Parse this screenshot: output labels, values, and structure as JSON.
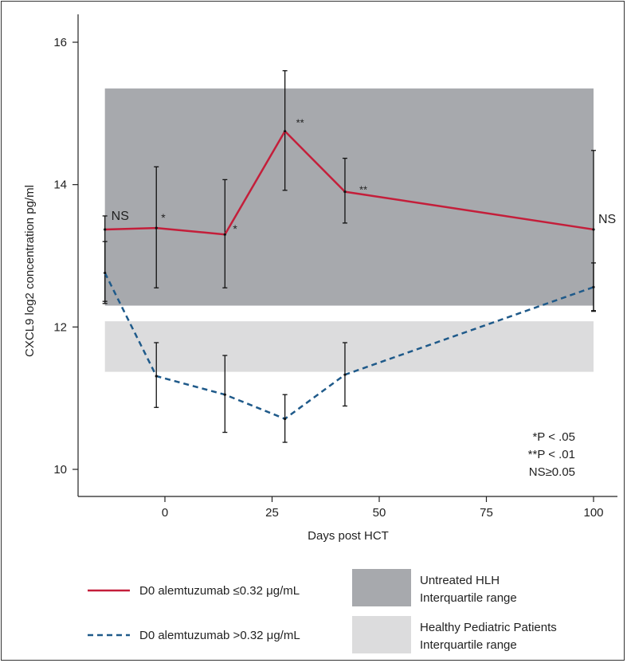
{
  "chart_data": {
    "type": "line",
    "xlabel": "Days post HCT",
    "ylabel": "CXCL9 log2 concentration pg/ml",
    "xlim": [
      -17,
      108
    ],
    "ylim": [
      9.65,
      16.4
    ],
    "x_ticks": [
      0,
      25,
      50,
      75,
      100
    ],
    "y_ticks": [
      10,
      12,
      14,
      16
    ],
    "bands": [
      {
        "name": "Untreated HLH Interquartile range",
        "y_low": 12.3,
        "y_high": 15.35,
        "x_from": -14,
        "x_to": 100,
        "color": "#a7a9ad"
      },
      {
        "name": "Healthy Pediatric Patients Interquartile range",
        "y_low": 11.37,
        "y_high": 12.08,
        "x_from": -14,
        "x_to": 100,
        "color": "#dcdcdd"
      }
    ],
    "series": [
      {
        "name": "D0 alemtuzumab ≤0.32 μg/mL",
        "color": "#c41e3a",
        "style": "solid",
        "x": [
          -14,
          -2,
          14,
          28,
          42,
          100
        ],
        "y": [
          13.37,
          13.39,
          13.3,
          14.75,
          13.9,
          13.37
        ],
        "err_low": [
          12.33,
          12.55,
          12.55,
          13.92,
          13.46,
          12.22
        ],
        "err_high": [
          13.56,
          14.25,
          14.07,
          15.6,
          14.37,
          14.48
        ],
        "labels": [
          "NS",
          "*",
          "*",
          "**",
          "**",
          "NS"
        ]
      },
      {
        "name": "D0 alemtuzumab >0.32 μg/mL",
        "color": "#1f5a8a",
        "style": "dashed",
        "x": [
          -14,
          -2,
          14,
          28,
          42,
          100
        ],
        "y": [
          12.76,
          11.31,
          11.05,
          10.71,
          11.33,
          12.56
        ],
        "err_low": [
          12.36,
          10.87,
          10.52,
          10.38,
          10.89,
          12.23
        ],
        "err_high": [
          13.2,
          11.78,
          11.6,
          11.05,
          11.78,
          12.9
        ]
      }
    ],
    "annotations": [
      "*P < .05",
      "**P < .01",
      "NS≥0.05"
    ],
    "legend": {
      "series": [
        {
          "label": "D0 alemtuzumab ≤0.32 μg/mL"
        },
        {
          "label": "D0 alemtuzumab >0.32 μg/mL"
        }
      ],
      "bands": [
        {
          "line1": "Untreated HLH",
          "line2": "Interquartile range"
        },
        {
          "line1": "Healthy Pediatric Patients",
          "line2": "Interquartile range"
        }
      ]
    }
  }
}
